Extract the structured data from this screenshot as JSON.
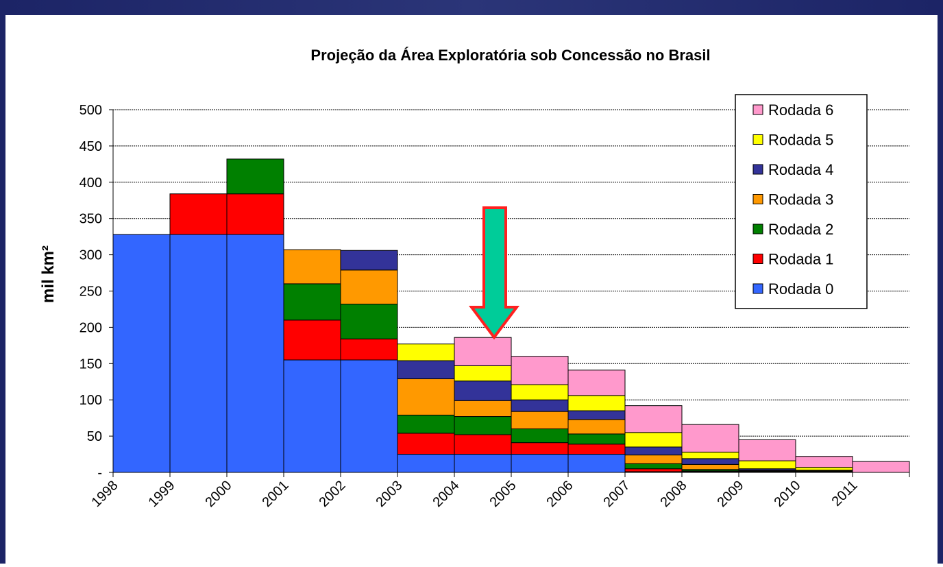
{
  "chart_data": {
    "type": "stacked_bar",
    "title": "Projeção da Área Exploratória sob Concessão no Brasil",
    "y_label": "mil km²",
    "categories": [
      "1998",
      "1999",
      "2000",
      "2001",
      "2002",
      "2003",
      "2004",
      "2005",
      "2006",
      "2007",
      "2008",
      "2009",
      "2010",
      "2011"
    ],
    "series": [
      {
        "name": "Rodada 0",
        "color": "#3366ff",
        "values": [
          328,
          328,
          328,
          155,
          155,
          25,
          25,
          25,
          25,
          1,
          1,
          0,
          0,
          0
        ]
      },
      {
        "name": "Rodada 1",
        "color": "#ff0000",
        "values": [
          0,
          56,
          56,
          55,
          29,
          29,
          27,
          16,
          14,
          4,
          1,
          1,
          0,
          0
        ]
      },
      {
        "name": "Rodada 2",
        "color": "#008000",
        "values": [
          0,
          0,
          48,
          50,
          48,
          25,
          25,
          19,
          14,
          7,
          2,
          1,
          1,
          0
        ]
      },
      {
        "name": "Rodada 3",
        "color": "#ff9900",
        "values": [
          0,
          0,
          0,
          47,
          47,
          50,
          22,
          24,
          20,
          12,
          7,
          1,
          1,
          0
        ]
      },
      {
        "name": "Rodada 4",
        "color": "#333399",
        "values": [
          0,
          0,
          0,
          0,
          27,
          25,
          27,
          16,
          12,
          11,
          8,
          2,
          1,
          0
        ]
      },
      {
        "name": "Rodada 5",
        "color": "#ffff00",
        "values": [
          0,
          0,
          0,
          0,
          0,
          23,
          21,
          21,
          21,
          20,
          9,
          11,
          4,
          0
        ]
      },
      {
        "name": "Rodada 6",
        "color": "#ff99cc",
        "values": [
          0,
          0,
          0,
          0,
          0,
          0,
          39,
          39,
          35,
          37,
          38,
          29,
          15,
          15
        ]
      }
    ],
    "ylim": [
      0,
      500
    ],
    "yticks": [
      {
        "value": 0,
        "label": "-"
      },
      50,
      100,
      150,
      200,
      250,
      300,
      350,
      400,
      450,
      500
    ],
    "grid": true,
    "legend": "top-right"
  }
}
